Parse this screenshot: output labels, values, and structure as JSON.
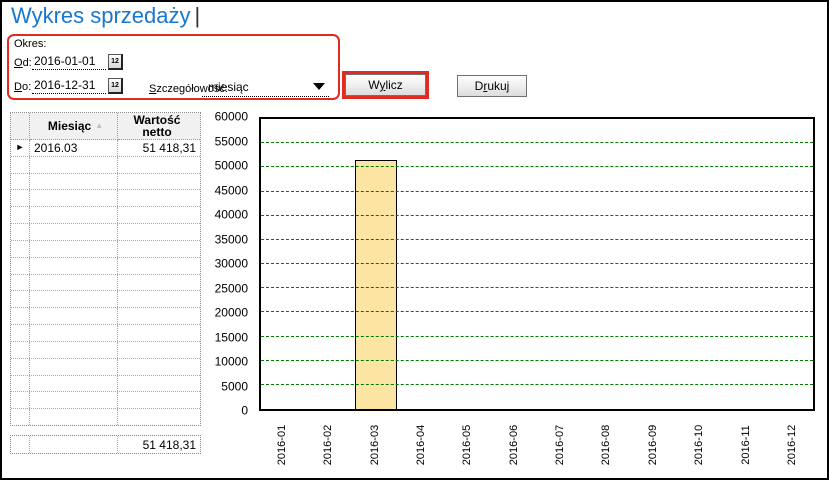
{
  "window": {
    "title": "Wykres sprzedaży",
    "cursor": "|"
  },
  "accent_colors": {
    "title_blue": "#1877d0",
    "highlight_red": "#e02b20",
    "grid_green": "#007b00",
    "bar_fill": "#fce4a2"
  },
  "form": {
    "group_label": "Okres:",
    "from": {
      "label_key": "O",
      "label_rest": "d:",
      "value": "2016-01-01"
    },
    "to": {
      "label_key": "D",
      "label_rest": "o:",
      "value": "2016-12-31"
    },
    "detail": {
      "label_key": "S",
      "label_rest": "zczegółowość:",
      "value": "miesiąc"
    },
    "calendar_icon_text": "12"
  },
  "buttons": {
    "calculate": {
      "pre": "W",
      "key": "y",
      "post": "licz"
    },
    "print": {
      "pre": "D",
      "key": "r",
      "post": "ukuj"
    }
  },
  "table": {
    "columns": [
      "Miesiąc",
      "Wartość netto"
    ],
    "sort_indicator": "▲",
    "current_row_marker": "►",
    "rows": [
      {
        "month": "2016.03",
        "net_value": "51 418,31",
        "current": true
      }
    ],
    "empty_row_count": 16,
    "summary_value": "51 418,31"
  },
  "chart_data": {
    "type": "bar",
    "title": "",
    "xlabel": "",
    "ylabel": "",
    "categories": [
      "2016-01",
      "2016-02",
      "2016-03",
      "2016-04",
      "2016-05",
      "2016-06",
      "2016-07",
      "2016-08",
      "2016-09",
      "2016-10",
      "2016-11",
      "2016-12"
    ],
    "values": [
      0,
      0,
      51418.31,
      0,
      0,
      0,
      0,
      0,
      0,
      0,
      0,
      0
    ],
    "ylim": [
      0,
      60000
    ],
    "ytick_step": 5000,
    "grid": "horizontal-dashed",
    "grid_color": "#007b00",
    "bar_color": "#fce4a2",
    "legend": "none"
  }
}
